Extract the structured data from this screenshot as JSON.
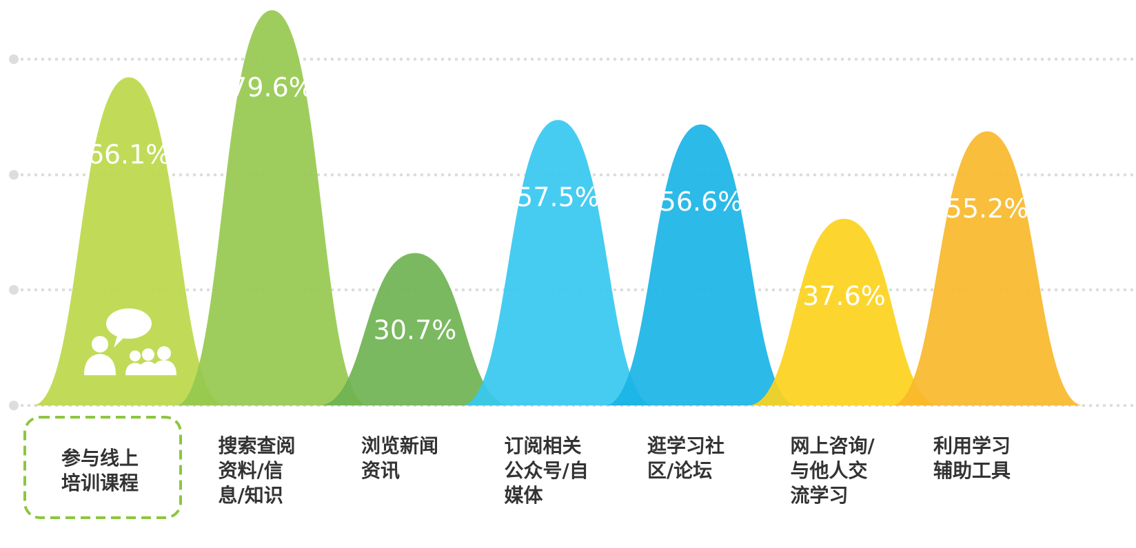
{
  "chart_data": {
    "type": "bar",
    "categories": [
      "参与线上培训课程",
      "搜索查阅资料/信息/知识",
      "浏览新闻资讯",
      "订阅相关公众号/自媒体",
      "逛学习社区/论坛",
      "网上咨询/与他人交流学习",
      "利用学习辅助工具"
    ],
    "values": [
      66.1,
      79.6,
      30.7,
      57.5,
      56.6,
      37.6,
      55.2
    ],
    "value_labels": [
      "66.1%",
      "79.6%",
      "30.7%",
      "57.5%",
      "56.6%",
      "37.6%",
      "55.2%"
    ],
    "colors": [
      "#bcd84a",
      "#96c94f",
      "#6fb352",
      "#36c8f0",
      "#1ab4e6",
      "#fcd21c",
      "#f8b82b"
    ],
    "ylim": [
      0,
      80
    ]
  }
}
